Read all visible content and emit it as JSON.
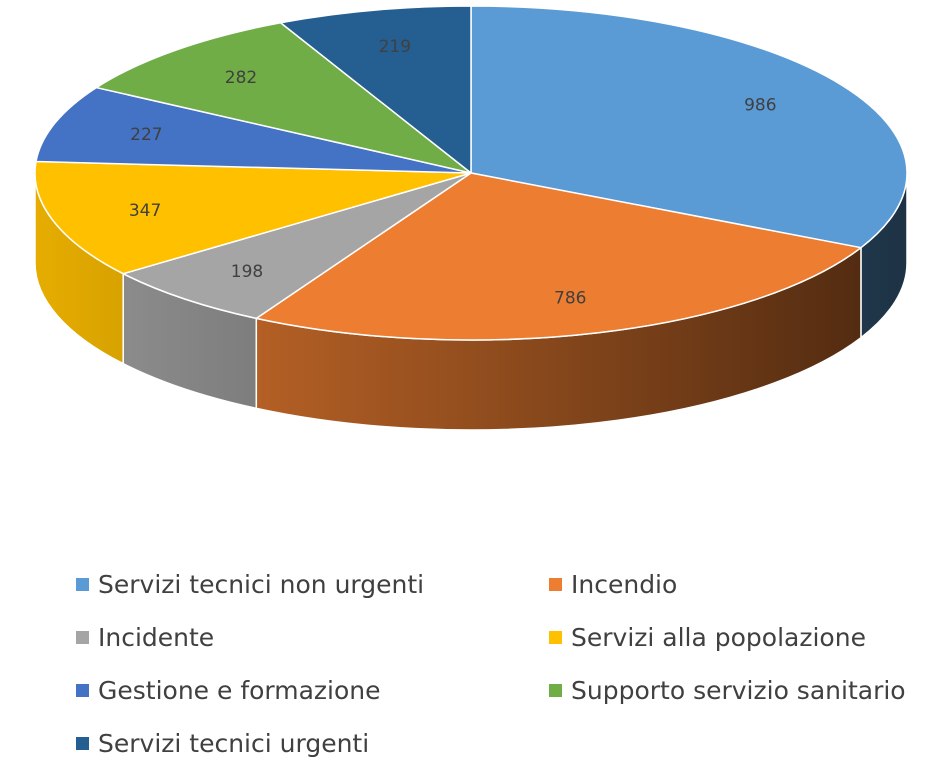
{
  "chart_data": {
    "type": "pie",
    "variant": "3d",
    "title": "",
    "legend_position": "bottom",
    "categories": [
      "Servizi tecnici non urgenti",
      "Incendio",
      "Incidente",
      "Servizi alla popolazione",
      "Gestione e formazione",
      "Supporto servizio sanitario",
      "Servizi tecnici urgenti"
    ],
    "values": [
      986,
      786,
      198,
      347,
      227,
      282,
      219
    ],
    "colors": [
      "#5b9bd5",
      "#ed7d31",
      "#a5a5a5",
      "#ffc000",
      "#4472c4",
      "#70ad47",
      "#255e91"
    ],
    "data_labels": [
      "986",
      "786",
      "198",
      "347",
      "227",
      "282",
      "219"
    ]
  }
}
